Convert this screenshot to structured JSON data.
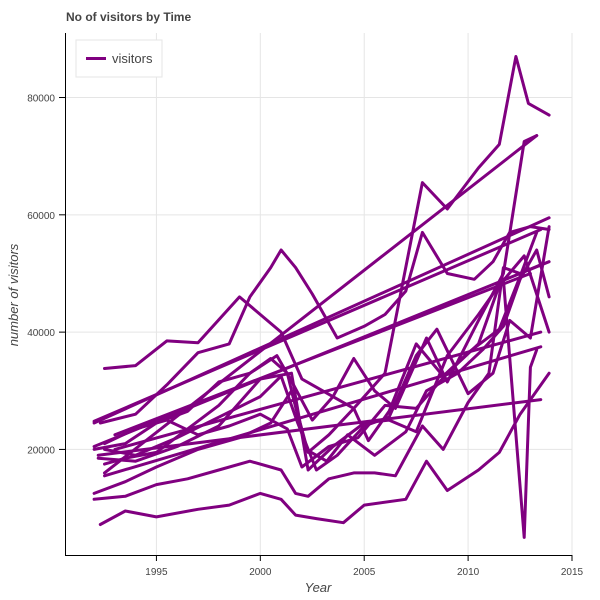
{
  "chart_data": {
    "type": "line",
    "title": "No of visitors by Time",
    "xlabel": "Year",
    "ylabel": "number of visitors",
    "xlim": [
      1990.6,
      2015.0
    ],
    "ylim": [
      2000,
      91000
    ],
    "x_ticks": [
      1995,
      2000,
      2005,
      2010,
      2015
    ],
    "x_tick_labels": [
      "1995",
      "2000",
      "2005",
      "2010",
      "2015"
    ],
    "y_ticks": [
      20000,
      40000,
      60000,
      80000
    ],
    "y_tick_labels": [
      "20000",
      "40000",
      "60000",
      "80000"
    ],
    "grid": true,
    "legend": {
      "position": "top-left",
      "entries": [
        "visitors"
      ]
    },
    "color": "#800080",
    "series": [
      {
        "name": "visitors",
        "x": [
          1992.3,
          1993.5,
          1995.0,
          1997.0,
          1998.5,
          2000.0,
          2001.0,
          2001.7,
          2002.7,
          2004.0,
          2005.0,
          2007.0,
          2008.0,
          2009.0,
          2010.5,
          2011.5,
          2012.5,
          2013.3,
          2013.9
        ],
        "values": [
          7200,
          9500,
          8500,
          9800,
          10500,
          12500,
          11500,
          8800,
          8200,
          7500,
          10500,
          11500,
          18000,
          13000,
          16500,
          19500,
          26000,
          30000,
          33000
        ]
      },
      {
        "name": "visitors",
        "x": [
          1992.0,
          1993.5,
          1995.0,
          1996.5,
          1998.0,
          1999.5,
          2001.0,
          2001.7,
          2002.3,
          2003.3,
          2004.5,
          2005.5,
          2006.5,
          2007.8,
          2008.8,
          2010.0,
          2011.0,
          2011.7,
          2012.5,
          2013.5
        ],
        "values": [
          11500,
          12000,
          14000,
          15000,
          16500,
          18000,
          16500,
          12500,
          12000,
          15000,
          16000,
          16000,
          15500,
          24000,
          20000,
          28000,
          33000,
          51000,
          50000,
          51500
        ]
      },
      {
        "name": "visitors",
        "x": [
          1992.5,
          1994.0,
          1996.0,
          1998.0,
          2000.0,
          2001.0,
          2001.8,
          2002.7,
          2003.7,
          2005.0,
          2006.2,
          2007.5,
          2008.5,
          2010.0,
          2011.2,
          2012.0,
          2013.0,
          2013.9
        ],
        "values": [
          20000,
          19000,
          22000,
          25500,
          29000,
          32500,
          24500,
          16500,
          19000,
          24000,
          25500,
          36000,
          40500,
          29500,
          33000,
          42000,
          39000,
          58000
        ]
      },
      {
        "name": "visitors",
        "x": [
          1992.3,
          1994.0,
          1995.5,
          1997.0,
          1998.5,
          1999.5,
          2000.5,
          2001.0,
          2001.7,
          2002.5,
          2003.7,
          2005.0,
          2006.0,
          2007.0,
          2007.8,
          2009.0,
          2010.3,
          2011.2,
          2012.0,
          2013.0,
          2013.9
        ],
        "values": [
          24500,
          26000,
          31000,
          36500,
          38000,
          46000,
          51000,
          54000,
          51000,
          46500,
          39000,
          41000,
          43000,
          47000,
          57000,
          50000,
          49000,
          52000,
          57000,
          58000,
          57500
        ]
      },
      {
        "name": "visitors",
        "x": [
          1992.5,
          1994.0,
          1995.5,
          1997.0,
          1999.0,
          2001.0,
          2002.0,
          2003.0,
          2004.5,
          2006.0,
          2007.8,
          2009.0,
          2010.5,
          2011.5,
          2012.3,
          2012.9,
          2013.9
        ],
        "values": [
          33800,
          34300,
          38500,
          38200,
          46000,
          40000,
          32000,
          30000,
          27000,
          33000,
          65500,
          61000,
          68000,
          72000,
          87000,
          79000,
          77000
        ]
      },
      {
        "name": "visitors",
        "x": [
          1992.5,
          1993.5,
          1995.0,
          1996.5,
          1998.0,
          1999.5,
          2000.5,
          2001.3,
          2002.2,
          2003.2,
          2004.2,
          2005.5,
          2007.0,
          2008.0,
          2009.5,
          2010.7,
          2011.7,
          2012.5,
          2013.3,
          2013.9
        ],
        "values": [
          17500,
          18500,
          19500,
          23500,
          27500,
          33000,
          35500,
          33000,
          20000,
          18000,
          22500,
          19000,
          23000,
          30000,
          33000,
          37000,
          41000,
          49000,
          54000,
          46000
        ]
      },
      {
        "name": "visitors",
        "x": [
          1992.0,
          1993.5,
          1995.0,
          1997.0,
          1999.0,
          2000.5,
          2001.5,
          2002.3,
          2003.3,
          2004.5,
          2005.2,
          2006.2,
          2007.5,
          2008.8,
          2010.0,
          2011.5,
          2012.5,
          2013.3
        ],
        "values": [
          12500,
          14500,
          17000,
          20000,
          22000,
          24500,
          30000,
          19500,
          22500,
          27000,
          21500,
          26500,
          38000,
          32500,
          36500,
          40500,
          49500,
          57000
        ]
      },
      {
        "name": "visitors",
        "x": [
          1992.0,
          1993.5,
          1995.0,
          1996.5,
          1998.0,
          1999.5,
          2000.8,
          2001.6,
          2002.5,
          2003.5,
          2004.5,
          2005.5,
          2006.5,
          2008.0,
          2009.0,
          2010.5,
          2011.7,
          2012.7,
          2013.3
        ],
        "values": [
          20000,
          21000,
          24500,
          26500,
          31500,
          33000,
          36000,
          31000,
          25000,
          29000,
          35500,
          30000,
          27000,
          39000,
          31500,
          42000,
          50000,
          72500,
          73500
        ]
      },
      {
        "name": "visitors",
        "x": [
          1992.5,
          1994.0,
          1995.5,
          1997.0,
          1998.5,
          2000.0,
          2001.3,
          2002.0,
          2003.3,
          2004.7,
          2006.0,
          2007.5,
          2009.0,
          2010.5,
          2011.5,
          2012.7,
          2013.9
        ],
        "values": [
          21000,
          23500,
          25000,
          22500,
          24000,
          26000,
          23500,
          17000,
          20500,
          22000,
          27500,
          27000,
          33000,
          38000,
          48000,
          53000,
          40000
        ]
      },
      {
        "name": "visitors",
        "x": [
          1992.2,
          1994.0,
          1996.0,
          1998.0,
          2000.0,
          2001.5,
          2002.3,
          2003.5,
          2005.0,
          2006.2,
          2007.5,
          2009.0,
          2010.5,
          2011.7,
          2012.7,
          2013.0,
          2013.3
        ],
        "values": [
          18500,
          18000,
          20500,
          24000,
          32000,
          33000,
          16500,
          20500,
          24500,
          25000,
          23000,
          36000,
          43000,
          49000,
          5000,
          34000,
          37000
        ]
      },
      {
        "name": "visitors",
        "x": [
          1992.0,
          2013.9
        ],
        "values": [
          20500,
          52000
        ]
      },
      {
        "name": "visitors",
        "x": [
          1992.0,
          2013.9
        ],
        "values": [
          24500,
          59500
        ]
      },
      {
        "name": "visitors",
        "x": [
          1992.5,
          2013.3
        ],
        "values": [
          16000,
          73500
        ]
      },
      {
        "name": "visitors",
        "x": [
          1992.2,
          2013.5
        ],
        "values": [
          19000,
          28500
        ]
      },
      {
        "name": "visitors",
        "x": [
          1992.5,
          2013.5
        ],
        "values": [
          15500,
          37500
        ]
      },
      {
        "name": "visitors",
        "x": [
          1992.0,
          2013.5
        ],
        "values": [
          24800,
          57500
        ]
      },
      {
        "name": "visitors",
        "x": [
          1993.0,
          2013.0
        ],
        "values": [
          22500,
          50000
        ]
      },
      {
        "name": "visitors",
        "x": [
          1993.0,
          2013.5
        ],
        "values": [
          20000,
          40000
        ]
      }
    ]
  }
}
